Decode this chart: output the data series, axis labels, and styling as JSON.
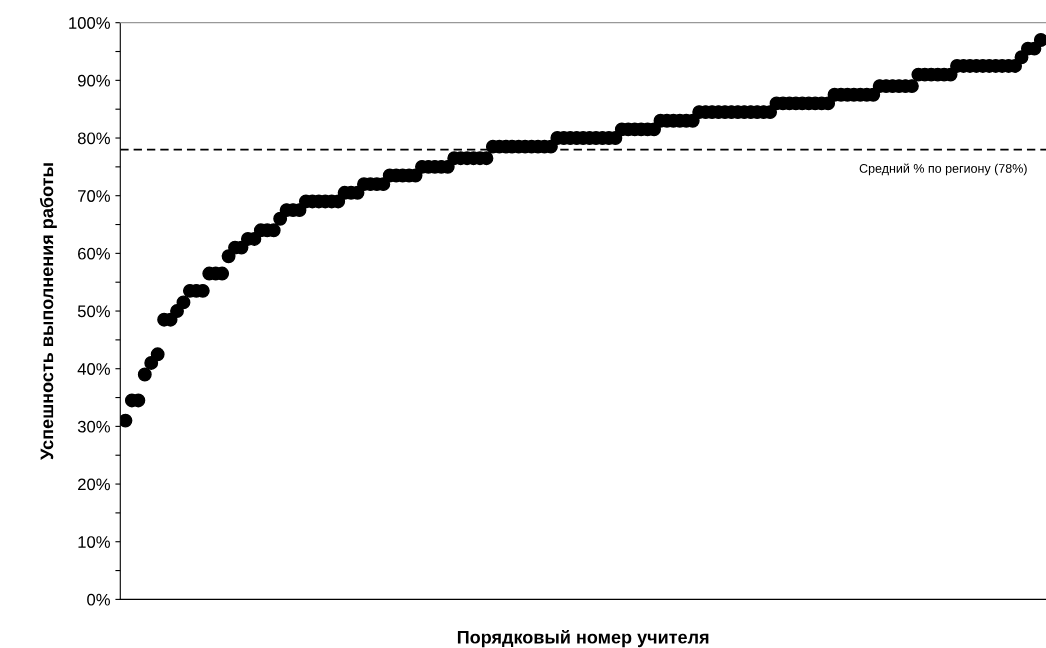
{
  "chart_data": {
    "type": "scatter",
    "xlabel": "Порядковый номер учителя",
    "ylabel": "Успешность выполнения работы",
    "categories": [
      null,
      null,
      null,
      null,
      null,
      null,
      null,
      null,
      null,
      null,
      null,
      null,
      null,
      null,
      null,
      null,
      null,
      null,
      null,
      null,
      null,
      null,
      null,
      null,
      null,
      null,
      null,
      null,
      null,
      null,
      null,
      null,
      null,
      null,
      null,
      null,
      null,
      null,
      null,
      null,
      null,
      null,
      null,
      null,
      null,
      null,
      null,
      null,
      null,
      null,
      null,
      null,
      null,
      null,
      null,
      null,
      null,
      null,
      null,
      null,
      null,
      null,
      null,
      null,
      null,
      null,
      null,
      null,
      null,
      null,
      null,
      null,
      null,
      null,
      null,
      null,
      null,
      null,
      null,
      null,
      null,
      null,
      null,
      null,
      null,
      null,
      null,
      null,
      null,
      null,
      null,
      null,
      null,
      null,
      null,
      null,
      null,
      null,
      null,
      null,
      null,
      null,
      null,
      null,
      null,
      null,
      null,
      null,
      null,
      null,
      null,
      null,
      null,
      null,
      null,
      null,
      null,
      null,
      null,
      null,
      null,
      null,
      null,
      null,
      null,
      null,
      null,
      null,
      null,
      null,
      null,
      null,
      null,
      null,
      null,
      null,
      null,
      null,
      null,
      null,
      null,
      null,
      null
    ],
    "series": [
      {
        "color": "#000000",
        "values": [
          31,
          34.5,
          34.5,
          39,
          41,
          42.5,
          48.5,
          48.5,
          50,
          51.5,
          53.5,
          53.5,
          53.5,
          56.5,
          56.5,
          56.5,
          59.5,
          61,
          61,
          62.5,
          62.5,
          64,
          64,
          64,
          66,
          67.5,
          67.5,
          67.5,
          69,
          69,
          69,
          69,
          69,
          69,
          70.5,
          70.5,
          70.5,
          72,
          72,
          72,
          72,
          73.5,
          73.5,
          73.5,
          73.5,
          73.5,
          75,
          75,
          75,
          75,
          75,
          76.5,
          76.5,
          76.5,
          76.5,
          76.5,
          76.5,
          78.5,
          78.5,
          78.5,
          78.5,
          78.5,
          78.5,
          78.5,
          78.5,
          78.5,
          78.5,
          80,
          80,
          80,
          80,
          80,
          80,
          80,
          80,
          80,
          80,
          81.5,
          81.5,
          81.5,
          81.5,
          81.5,
          81.5,
          83,
          83,
          83,
          83,
          83,
          83,
          84.5,
          84.5,
          84.5,
          84.5,
          84.5,
          84.5,
          84.5,
          84.5,
          84.5,
          84.5,
          84.5,
          84.5,
          86,
          86,
          86,
          86,
          86,
          86,
          86,
          86,
          86,
          87.5,
          87.5,
          87.5,
          87.5,
          87.5,
          87.5,
          87.5,
          89,
          89,
          89,
          89,
          89,
          89,
          91,
          91,
          91,
          91,
          91,
          91,
          92.5,
          92.5,
          92.5,
          92.5,
          92.5,
          92.5,
          92.5,
          92.5,
          92.5,
          92.5,
          94,
          95.5,
          95.5,
          97
        ]
      }
    ],
    "marker": "circle",
    "ylim": [
      0,
      100
    ],
    "yticks": [
      {
        "value": 0,
        "label": "0%"
      },
      {
        "value": 5,
        "label": null
      },
      {
        "value": 10,
        "label": "10%"
      },
      {
        "value": 15,
        "label": null
      },
      {
        "value": 20,
        "label": "20%"
      },
      {
        "value": 25,
        "label": null
      },
      {
        "value": 30,
        "label": "30%"
      },
      {
        "value": 35,
        "label": null
      },
      {
        "value": 40,
        "label": "40%"
      },
      {
        "value": 45,
        "label": null
      },
      {
        "value": 50,
        "label": "50%"
      },
      {
        "value": 55,
        "label": null
      },
      {
        "value": 60,
        "label": "60%"
      },
      {
        "value": 65,
        "label": null
      },
      {
        "value": 70,
        "label": "70%"
      },
      {
        "value": 75,
        "label": null
      },
      {
        "value": 80,
        "label": "80%"
      },
      {
        "value": 85,
        "label": null
      },
      {
        "value": 90,
        "label": "90%"
      },
      {
        "value": 95,
        "label": null
      },
      {
        "value": 100,
        "label": "100%"
      }
    ],
    "tick_labels": "y",
    "ref_lines": [
      {
        "axis": "y",
        "value": 78,
        "label": "Средний % по региону (78%)",
        "color": "#000000",
        "line_style": "dashed"
      }
    ]
  }
}
